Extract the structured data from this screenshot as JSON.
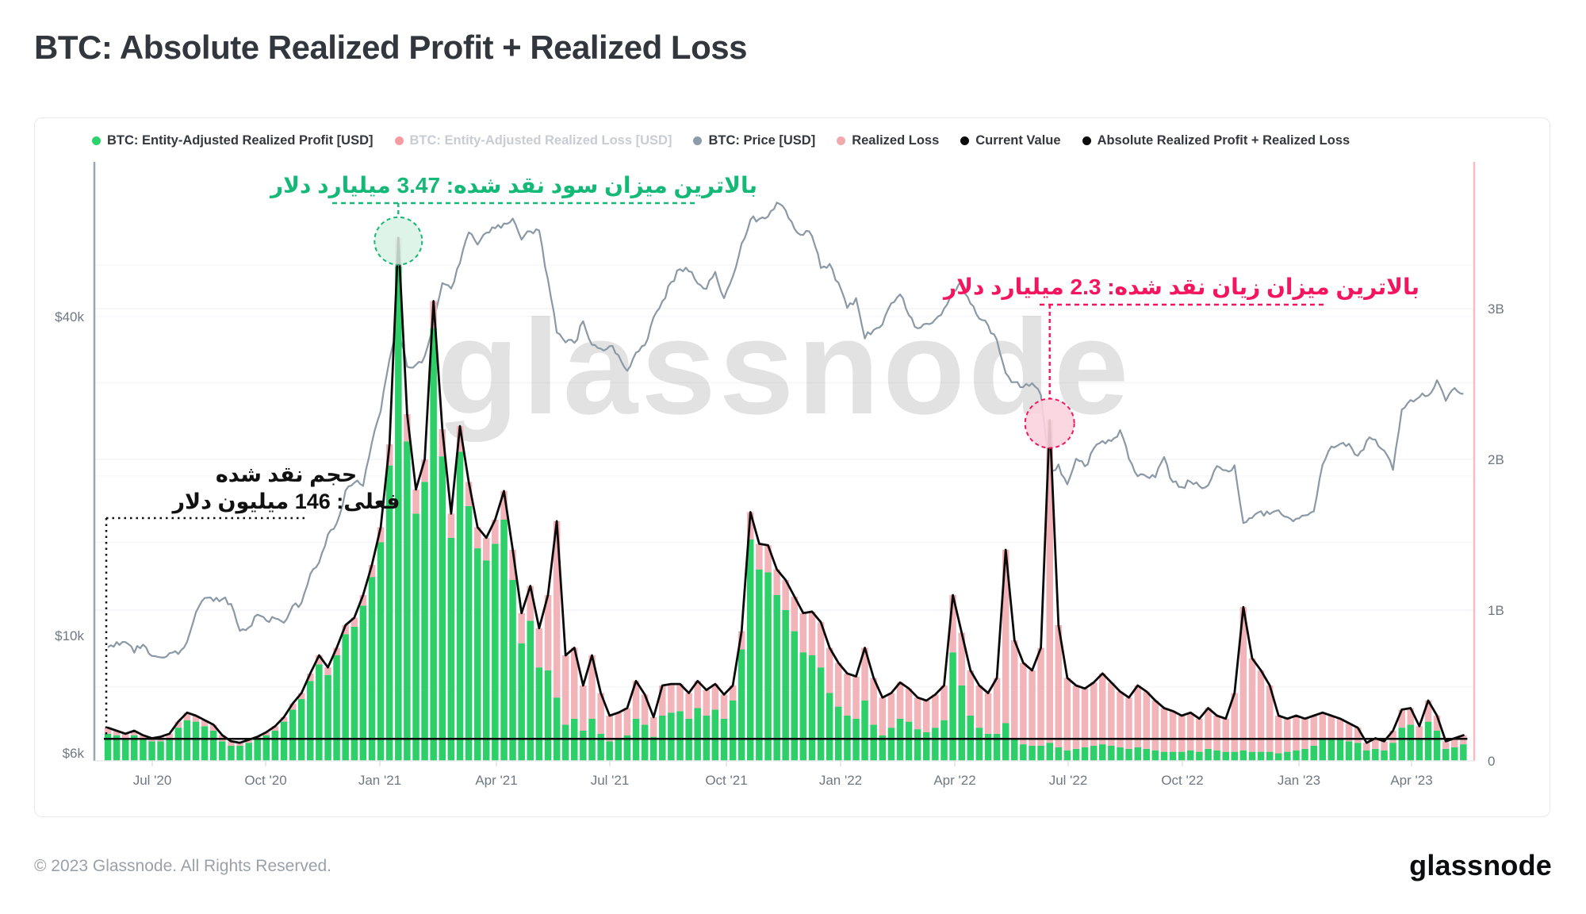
{
  "page": {
    "title": "BTC: Absolute Realized Profit + Realized Loss",
    "footer_copyright": "© 2023 Glassnode. All Rights Reserved.",
    "footer_logo": "glassnode",
    "watermark": "glassnode"
  },
  "legend": {
    "items": [
      {
        "label": "BTC: Entity-Adjusted Realized Profit [USD]",
        "color": "#2bd36e",
        "disabled": false
      },
      {
        "label": "BTC: Entity-Adjusted Realized Loss [USD]",
        "color": "#f79ba3",
        "disabled": true
      },
      {
        "label": "BTC: Price [USD]",
        "color": "#8d9ca8",
        "disabled": false
      },
      {
        "label": "Realized Loss",
        "color": "#f2a9ae",
        "disabled": false
      },
      {
        "label": "Current Value",
        "color": "#0b0b0c",
        "disabled": false
      },
      {
        "label": "Absolute Realized Profit + Realized Loss",
        "color": "#0b0b0c",
        "disabled": false
      }
    ]
  },
  "annotations": {
    "max_profit": {
      "text": "بالاترین میزان سود نقد شده: 3.47 میلیارد دلار",
      "value_billion": 3.47,
      "week_index": 33,
      "color": "#14b877"
    },
    "max_loss": {
      "text": "بالاترین میزان زیان نقد شده: 2.3 میلیارد دلار",
      "value_billion": 2.26,
      "week_index": 107,
      "color": "#f5145e"
    },
    "current": {
      "line1": "حجم نقد شده",
      "line2": "فعلی: 146 میلیون دلار",
      "value_billion": 0.146,
      "color": "#111111"
    }
  },
  "chart_data": {
    "type": "bar",
    "subtype": "stacked-bars-with-lines",
    "x_labels": [
      "Jul '20",
      "Oct '20",
      "Jan '21",
      "Apr '21",
      "Jul '21",
      "Oct '21",
      "Jan '22",
      "Apr '22",
      "Jul '22",
      "Oct '22",
      "Jan '23",
      "Apr '23"
    ],
    "left_axis": {
      "scale": "log",
      "unit": "USD",
      "tick_labels": [
        "$40k",
        "$10k",
        "$6k"
      ],
      "tick_values_usd": [
        40000,
        10000,
        6000
      ]
    },
    "right_axis": {
      "scale": "linear",
      "unit": "USD billions",
      "tick_labels": [
        "3B",
        "2B",
        "1B",
        "0"
      ],
      "tick_values_billion": [
        3,
        2,
        1,
        0
      ]
    },
    "weeks_start": "2020-05-25",
    "weeks_end": "2023-05-08",
    "series": [
      {
        "name": "BTC: Entity-Adjusted Realized Profit [USD]",
        "type": "bar",
        "axis": "right",
        "color": "#2ccf68",
        "values_billion": [
          0.18,
          0.17,
          0.15,
          0.17,
          0.14,
          0.13,
          0.13,
          0.15,
          0.22,
          0.27,
          0.26,
          0.23,
          0.2,
          0.13,
          0.1,
          0.1,
          0.12,
          0.14,
          0.17,
          0.2,
          0.26,
          0.34,
          0.41,
          0.53,
          0.64,
          0.57,
          0.7,
          0.84,
          0.89,
          1.03,
          1.22,
          1.45,
          1.96,
          3.28,
          2.12,
          1.64,
          1.85,
          2.87,
          2.02,
          1.48,
          2.05,
          1.69,
          1.41,
          1.33,
          1.44,
          1.6,
          1.2,
          0.78,
          0.93,
          0.62,
          0.6,
          0.42,
          0.24,
          0.28,
          0.2,
          0.28,
          0.18,
          0.13,
          0.15,
          0.17,
          0.28,
          0.24,
          0.16,
          0.3,
          0.32,
          0.33,
          0.28,
          0.35,
          0.3,
          0.34,
          0.28,
          0.4,
          0.74,
          1.47,
          1.27,
          1.25,
          1.1,
          1.0,
          0.86,
          0.72,
          0.7,
          0.62,
          0.45,
          0.36,
          0.3,
          0.28,
          0.4,
          0.24,
          0.17,
          0.22,
          0.28,
          0.26,
          0.21,
          0.19,
          0.22,
          0.27,
          0.72,
          0.5,
          0.3,
          0.22,
          0.18,
          0.18,
          0.25,
          0.14,
          0.11,
          0.1,
          0.1,
          0.12,
          0.09,
          0.07,
          0.08,
          0.09,
          0.1,
          0.11,
          0.1,
          0.09,
          0.08,
          0.09,
          0.08,
          0.07,
          0.06,
          0.06,
          0.06,
          0.07,
          0.06,
          0.08,
          0.07,
          0.06,
          0.06,
          0.07,
          0.06,
          0.06,
          0.06,
          0.05,
          0.06,
          0.07,
          0.08,
          0.1,
          0.14,
          0.15,
          0.15,
          0.13,
          0.12,
          0.07,
          0.08,
          0.07,
          0.12,
          0.22,
          0.24,
          0.15,
          0.26,
          0.2,
          0.08,
          0.09,
          0.11
        ]
      },
      {
        "name": "Realized Loss",
        "type": "bar",
        "stacked_on": "profit",
        "axis": "right",
        "color": "#f3b4b9",
        "values_billion": [
          0.04,
          0.03,
          0.03,
          0.03,
          0.03,
          0.02,
          0.03,
          0.03,
          0.04,
          0.05,
          0.04,
          0.04,
          0.04,
          0.04,
          0.03,
          0.02,
          0.02,
          0.02,
          0.02,
          0.03,
          0.03,
          0.04,
          0.04,
          0.05,
          0.06,
          0.05,
          0.05,
          0.06,
          0.06,
          0.07,
          0.08,
          0.1,
          0.14,
          0.19,
          0.18,
          0.16,
          0.15,
          0.18,
          0.18,
          0.16,
          0.17,
          0.16,
          0.14,
          0.15,
          0.16,
          0.19,
          0.2,
          0.2,
          0.23,
          0.26,
          0.5,
          1.17,
          0.46,
          0.47,
          0.3,
          0.42,
          0.27,
          0.17,
          0.17,
          0.18,
          0.25,
          0.2,
          0.13,
          0.2,
          0.19,
          0.18,
          0.17,
          0.18,
          0.17,
          0.17,
          0.16,
          0.1,
          0.12,
          0.18,
          0.17,
          0.18,
          0.17,
          0.2,
          0.23,
          0.26,
          0.29,
          0.3,
          0.3,
          0.29,
          0.28,
          0.28,
          0.35,
          0.31,
          0.25,
          0.23,
          0.24,
          0.22,
          0.21,
          0.21,
          0.22,
          0.23,
          0.38,
          0.35,
          0.3,
          0.28,
          0.27,
          0.37,
          1.15,
          0.66,
          0.54,
          0.5,
          0.65,
          2.14,
          0.81,
          0.48,
          0.42,
          0.39,
          0.42,
          0.47,
          0.42,
          0.37,
          0.34,
          0.41,
          0.38,
          0.33,
          0.29,
          0.27,
          0.24,
          0.25,
          0.22,
          0.27,
          0.23,
          0.22,
          0.39,
          0.95,
          0.62,
          0.54,
          0.44,
          0.25,
          0.22,
          0.23,
          0.2,
          0.2,
          0.18,
          0.15,
          0.13,
          0.12,
          0.1,
          0.05,
          0.07,
          0.06,
          0.08,
          0.12,
          0.11,
          0.08,
          0.14,
          0.1,
          0.05,
          0.06,
          0.06
        ]
      },
      {
        "name": "Absolute Realized Profit + Realized Loss",
        "type": "line",
        "axis": "right",
        "color": "#0a0a0a",
        "derived": "profit_plus_loss"
      },
      {
        "name": "Current Value",
        "type": "hline",
        "axis": "right",
        "color": "#0a0a0a",
        "value_billion": 0.146
      },
      {
        "name": "BTC: Price [USD]",
        "type": "line",
        "axis": "left",
        "color": "#8a99a5",
        "values_usd_k": [
          9.45,
          9.7,
          9.75,
          9.3,
          9.65,
          9.15,
          9.1,
          9.25,
          9.2,
          9.7,
          11.0,
          11.8,
          11.6,
          11.7,
          11.5,
          10.25,
          10.35,
          10.95,
          10.7,
          10.8,
          10.6,
          11.35,
          11.5,
          13.0,
          13.8,
          15.5,
          16.3,
          18.7,
          19.4,
          19.15,
          23.2,
          26.45,
          33.1,
          38.2,
          32.1,
          32.3,
          33.5,
          38.9,
          46.3,
          45.2,
          50.2,
          57.8,
          54.8,
          57.5,
          58.8,
          59.9,
          61.2,
          56.0,
          57.8,
          58.3,
          46.8,
          37.3,
          35.7,
          35.6,
          39.0,
          35.5,
          34.7,
          35.3,
          33.8,
          31.6,
          34.3,
          35.4,
          39.9,
          42.8,
          46.3,
          49.3,
          48.9,
          46.1,
          45.1,
          48.3,
          43.2,
          47.7,
          54.7,
          60.9,
          61.3,
          61.9,
          65.5,
          63.6,
          58.6,
          57.2,
          57.0,
          49.3,
          50.1,
          46.3,
          41.7,
          43.1,
          36.3,
          37.9,
          38.5,
          42.4,
          44.0,
          40.1,
          37.9,
          38.9,
          39.3,
          41.3,
          44.5,
          46.3,
          42.2,
          39.7,
          38.6,
          36.0,
          31.3,
          30.1,
          29.5,
          29.9,
          28.4,
          20.5,
          21.0,
          19.3,
          21.6,
          20.8,
          22.5,
          23.3,
          23.3,
          24.4,
          21.5,
          20.0,
          20.0,
          19.8,
          21.7,
          19.4,
          19.0,
          19.5,
          19.1,
          19.2,
          20.8,
          20.5,
          20.9,
          16.3,
          16.7,
          17.1,
          17.0,
          17.2,
          16.8,
          16.6,
          16.9,
          17.2,
          20.9,
          22.7,
          23.0,
          22.9,
          21.8,
          23.2,
          23.5,
          22.4,
          20.5,
          26.7,
          27.8,
          28.3,
          28.5,
          30.3,
          27.6,
          29.2,
          28.5
        ]
      }
    ]
  }
}
